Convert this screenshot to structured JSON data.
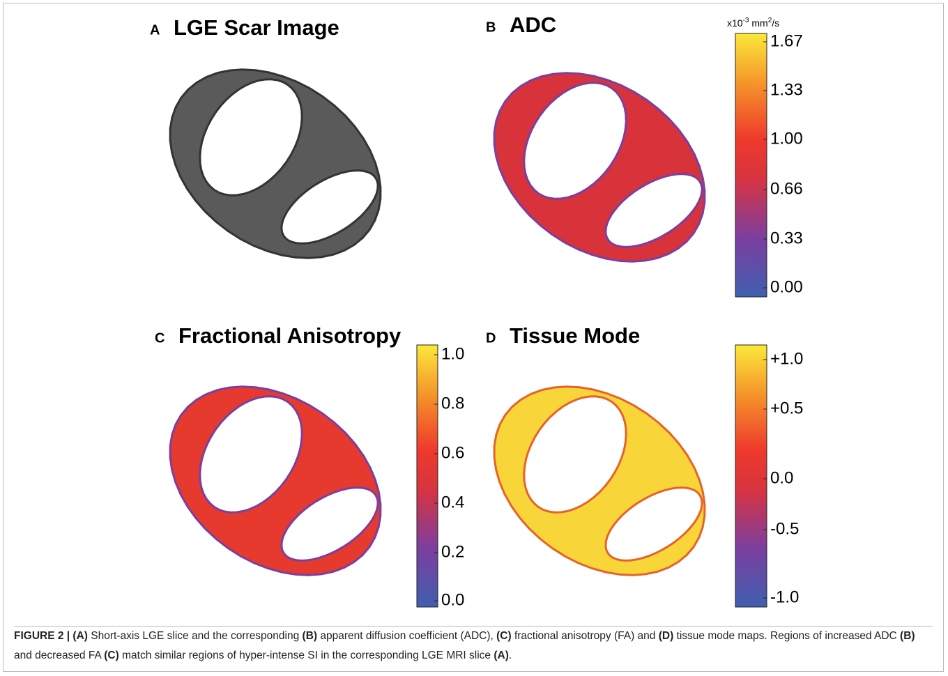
{
  "panels": [
    {
      "letter": "A",
      "title": "LGE Scar Image"
    },
    {
      "letter": "B",
      "title": "ADC",
      "colorbar": {
        "unit": [
          "x10",
          "-3",
          " mm",
          "2",
          "/s"
        ],
        "ticks": [
          "1.67",
          "1.33",
          "1.00",
          "0.66",
          "0.33",
          "0.00"
        ]
      }
    },
    {
      "letter": "C",
      "title": "Fractional Anisotropy",
      "colorbar": {
        "ticks": [
          "1.0",
          "0.8",
          "0.6",
          "0.4",
          "0.2",
          "0.0"
        ]
      }
    },
    {
      "letter": "D",
      "title": "Tissue Mode",
      "colorbar": {
        "ticks": [
          "+1.0",
          "+0.5",
          "0.0",
          "-0.5",
          "-1.0"
        ]
      }
    }
  ],
  "caption": [
    {
      "text": "FIGURE 2 | (A)",
      "bold": true
    },
    {
      "text": " Short-axis LGE slice and the corresponding ",
      "bold": false
    },
    {
      "text": "(B)",
      "bold": true
    },
    {
      "text": " apparent diffusion coefficient (ADC), ",
      "bold": false
    },
    {
      "text": "(C)",
      "bold": true
    },
    {
      "text": " fractional anisotropy (FA) and ",
      "bold": false
    },
    {
      "text": "(D)",
      "bold": true
    },
    {
      "text": " tissue mode maps. Regions of increased ADC ",
      "bold": false
    },
    {
      "text": "(B)",
      "bold": true
    },
    {
      "text": " and decreased FA ",
      "bold": false
    },
    {
      "text": "(C)",
      "bold": true
    },
    {
      "text": " match similar regions of hyper-intense SI in the corresponding LGE MRI slice ",
      "bold": false
    },
    {
      "text": "(A)",
      "bold": true
    },
    {
      "text": ".",
      "bold": false
    }
  ]
}
